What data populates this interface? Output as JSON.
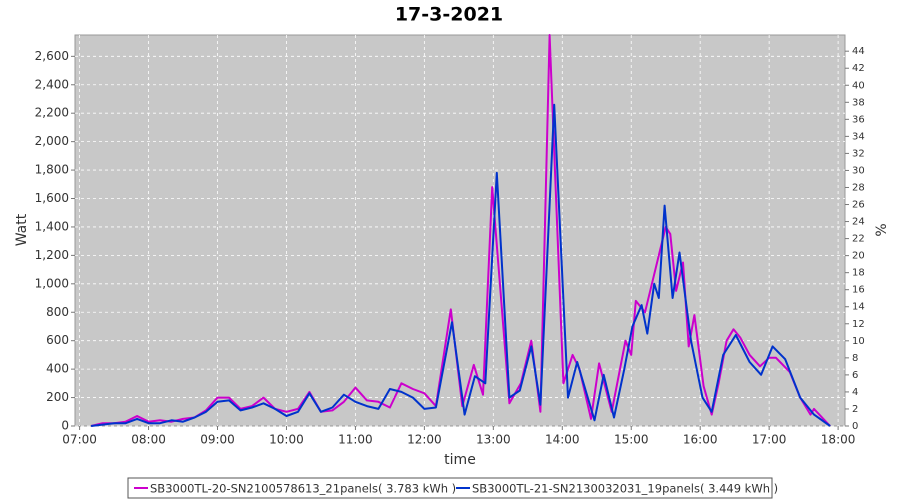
{
  "chart_data": {
    "type": "line",
    "title": "17-3-2021",
    "x_label": "time",
    "y_label": "Watt",
    "y2_label": "%",
    "xlim": [
      416,
      1086
    ],
    "xticks": [
      {
        "value": 420,
        "label": "07:00"
      },
      {
        "value": 480,
        "label": "08:00"
      },
      {
        "value": 540,
        "label": "09:00"
      },
      {
        "value": 600,
        "label": "10:00"
      },
      {
        "value": 660,
        "label": "11:00"
      },
      {
        "value": 720,
        "label": "12:00"
      },
      {
        "value": 780,
        "label": "13:00"
      },
      {
        "value": 840,
        "label": "14:00"
      },
      {
        "value": 900,
        "label": "15:00"
      },
      {
        "value": 960,
        "label": "16:00"
      },
      {
        "value": 1020,
        "label": "17:00"
      },
      {
        "value": 1080,
        "label": "18:00"
      }
    ],
    "ylim": [
      0,
      2750
    ],
    "yticks": [
      0,
      200,
      400,
      600,
      800,
      {
        "value": 1000,
        "label": "1,000"
      },
      {
        "value": 1200,
        "label": "1,200"
      },
      {
        "value": 1400,
        "label": "1,400"
      },
      {
        "value": 1600,
        "label": "1,600"
      },
      {
        "value": 1800,
        "label": "1,800"
      },
      {
        "value": 2000,
        "label": "2,000"
      },
      {
        "value": 2200,
        "label": "2,200"
      },
      {
        "value": 2400,
        "label": "2,400"
      },
      {
        "value": 2600,
        "label": "2,600"
      }
    ],
    "y2lim": [
      0,
      45.9
    ],
    "y2ticks": [
      0,
      2,
      4,
      6,
      8,
      10,
      12,
      14,
      16,
      18,
      20,
      22,
      24,
      26,
      28,
      30,
      32,
      34,
      36,
      38,
      40,
      42,
      44
    ],
    "grid": true,
    "legend": "bottom",
    "series": [
      {
        "name": "SB3000TL-20-SN2100578613_21panels( 3.783 kWh )",
        "color": "#cc00cc",
        "x": [
          430,
          440,
          450,
          460,
          470,
          480,
          490,
          500,
          510,
          520,
          530,
          540,
          550,
          560,
          570,
          580,
          590,
          600,
          610,
          620,
          630,
          640,
          650,
          660,
          670,
          680,
          690,
          700,
          710,
          720,
          730,
          743,
          753,
          763,
          771,
          779,
          794,
          804,
          813,
          821,
          829,
          841,
          849,
          855,
          865,
          872,
          883,
          895,
          900,
          904,
          912,
          918,
          930,
          934,
          939,
          945,
          950,
          955,
          963,
          970,
          976,
          983,
          989,
          995,
          1003,
          1012,
          1020,
          1026,
          1038,
          1047,
          1056,
          1059,
          1073
        ],
        "values": [
          0,
          20,
          20,
          30,
          70,
          30,
          40,
          30,
          50,
          60,
          110,
          200,
          200,
          120,
          140,
          200,
          120,
          100,
          120,
          240,
          100,
          110,
          170,
          270,
          180,
          170,
          130,
          300,
          260,
          230,
          140,
          820,
          140,
          430,
          220,
          1680,
          160,
          300,
          600,
          100,
          2750,
          300,
          500,
          400,
          50,
          440,
          100,
          600,
          500,
          880,
          800,
          1000,
          1400,
          1350,
          950,
          1150,
          560,
          780,
          280,
          80,
          300,
          600,
          680,
          620,
          500,
          420,
          480,
          480,
          380,
          200,
          80,
          120,
          0
        ]
      },
      {
        "name": "SB3000TL-21-SN2130032031_19panels( 3.449 kWh )",
        "color": "#0033cc",
        "x": [
          430,
          440,
          450,
          460,
          470,
          480,
          490,
          500,
          510,
          520,
          530,
          540,
          550,
          560,
          570,
          580,
          590,
          600,
          610,
          620,
          630,
          640,
          650,
          660,
          670,
          680,
          690,
          700,
          710,
          720,
          730,
          744,
          755,
          764,
          773,
          783,
          794,
          803,
          813,
          821,
          833,
          845,
          853,
          868,
          876,
          885,
          894,
          901,
          909,
          914,
          920,
          924,
          929,
          936,
          942,
          952,
          962,
          970,
          980,
          991,
          1003,
          1013,
          1023,
          1034,
          1047,
          1059,
          1073
        ],
        "values": [
          0,
          10,
          20,
          20,
          50,
          20,
          20,
          40,
          30,
          60,
          100,
          170,
          180,
          110,
          130,
          160,
          120,
          70,
          100,
          230,
          100,
          130,
          220,
          170,
          140,
          120,
          260,
          240,
          200,
          120,
          130,
          730,
          80,
          350,
          300,
          1780,
          200,
          250,
          560,
          150,
          2260,
          200,
          450,
          40,
          360,
          60,
          400,
          700,
          850,
          650,
          1000,
          900,
          1550,
          900,
          1220,
          600,
          200,
          100,
          500,
          640,
          450,
          360,
          560,
          470,
          200,
          80,
          0
        ]
      }
    ]
  }
}
